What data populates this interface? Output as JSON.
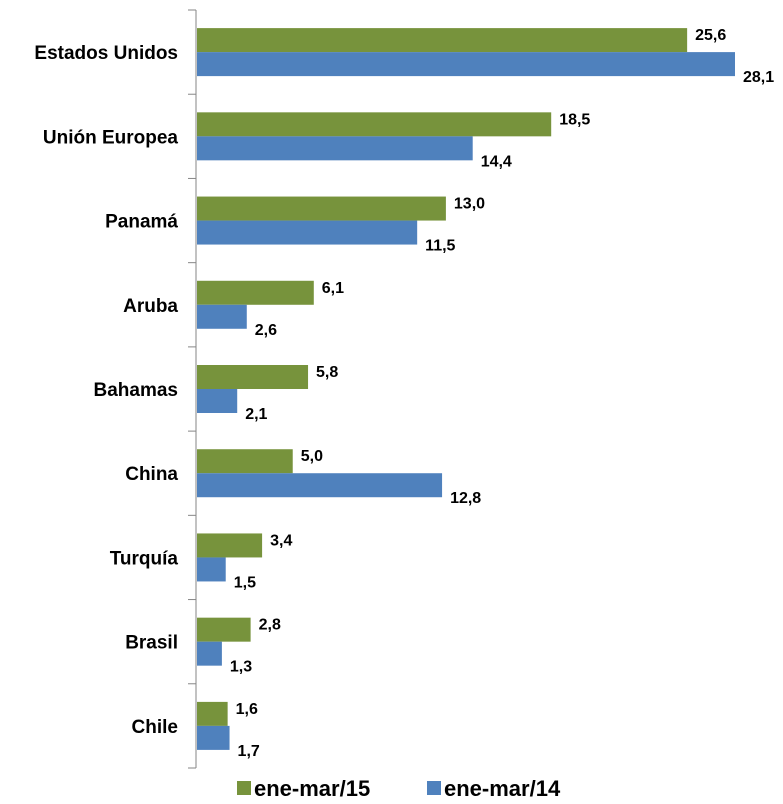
{
  "chart_data": {
    "type": "bar",
    "orientation": "horizontal",
    "categories": [
      "Estados Unidos",
      "Unión Europea",
      "Panamá",
      "Aruba",
      "Bahamas",
      "China",
      "Turquía",
      "Brasil",
      "Chile"
    ],
    "series": [
      {
        "name": "ene-mar/15",
        "color": "#77933C",
        "values": [
          25.6,
          18.5,
          13.0,
          6.1,
          5.8,
          5.0,
          3.4,
          2.8,
          1.6
        ],
        "labels": [
          "25,6",
          "18,5",
          "13,0",
          "6,1",
          "5,8",
          "5,0",
          "3,4",
          "2,8",
          "1,6"
        ]
      },
      {
        "name": "ene-mar/14",
        "color": "#4F81BD",
        "values": [
          28.1,
          14.4,
          11.5,
          2.6,
          2.1,
          12.8,
          1.5,
          1.3,
          1.7
        ],
        "labels": [
          "28,1",
          "14,4",
          "11,5",
          "2,6",
          "2,1",
          "12,8",
          "1,5",
          "1,3",
          "1,7"
        ]
      }
    ],
    "xlim": [
      0,
      28.1
    ],
    "grid": false,
    "legend_position": "bottom"
  }
}
